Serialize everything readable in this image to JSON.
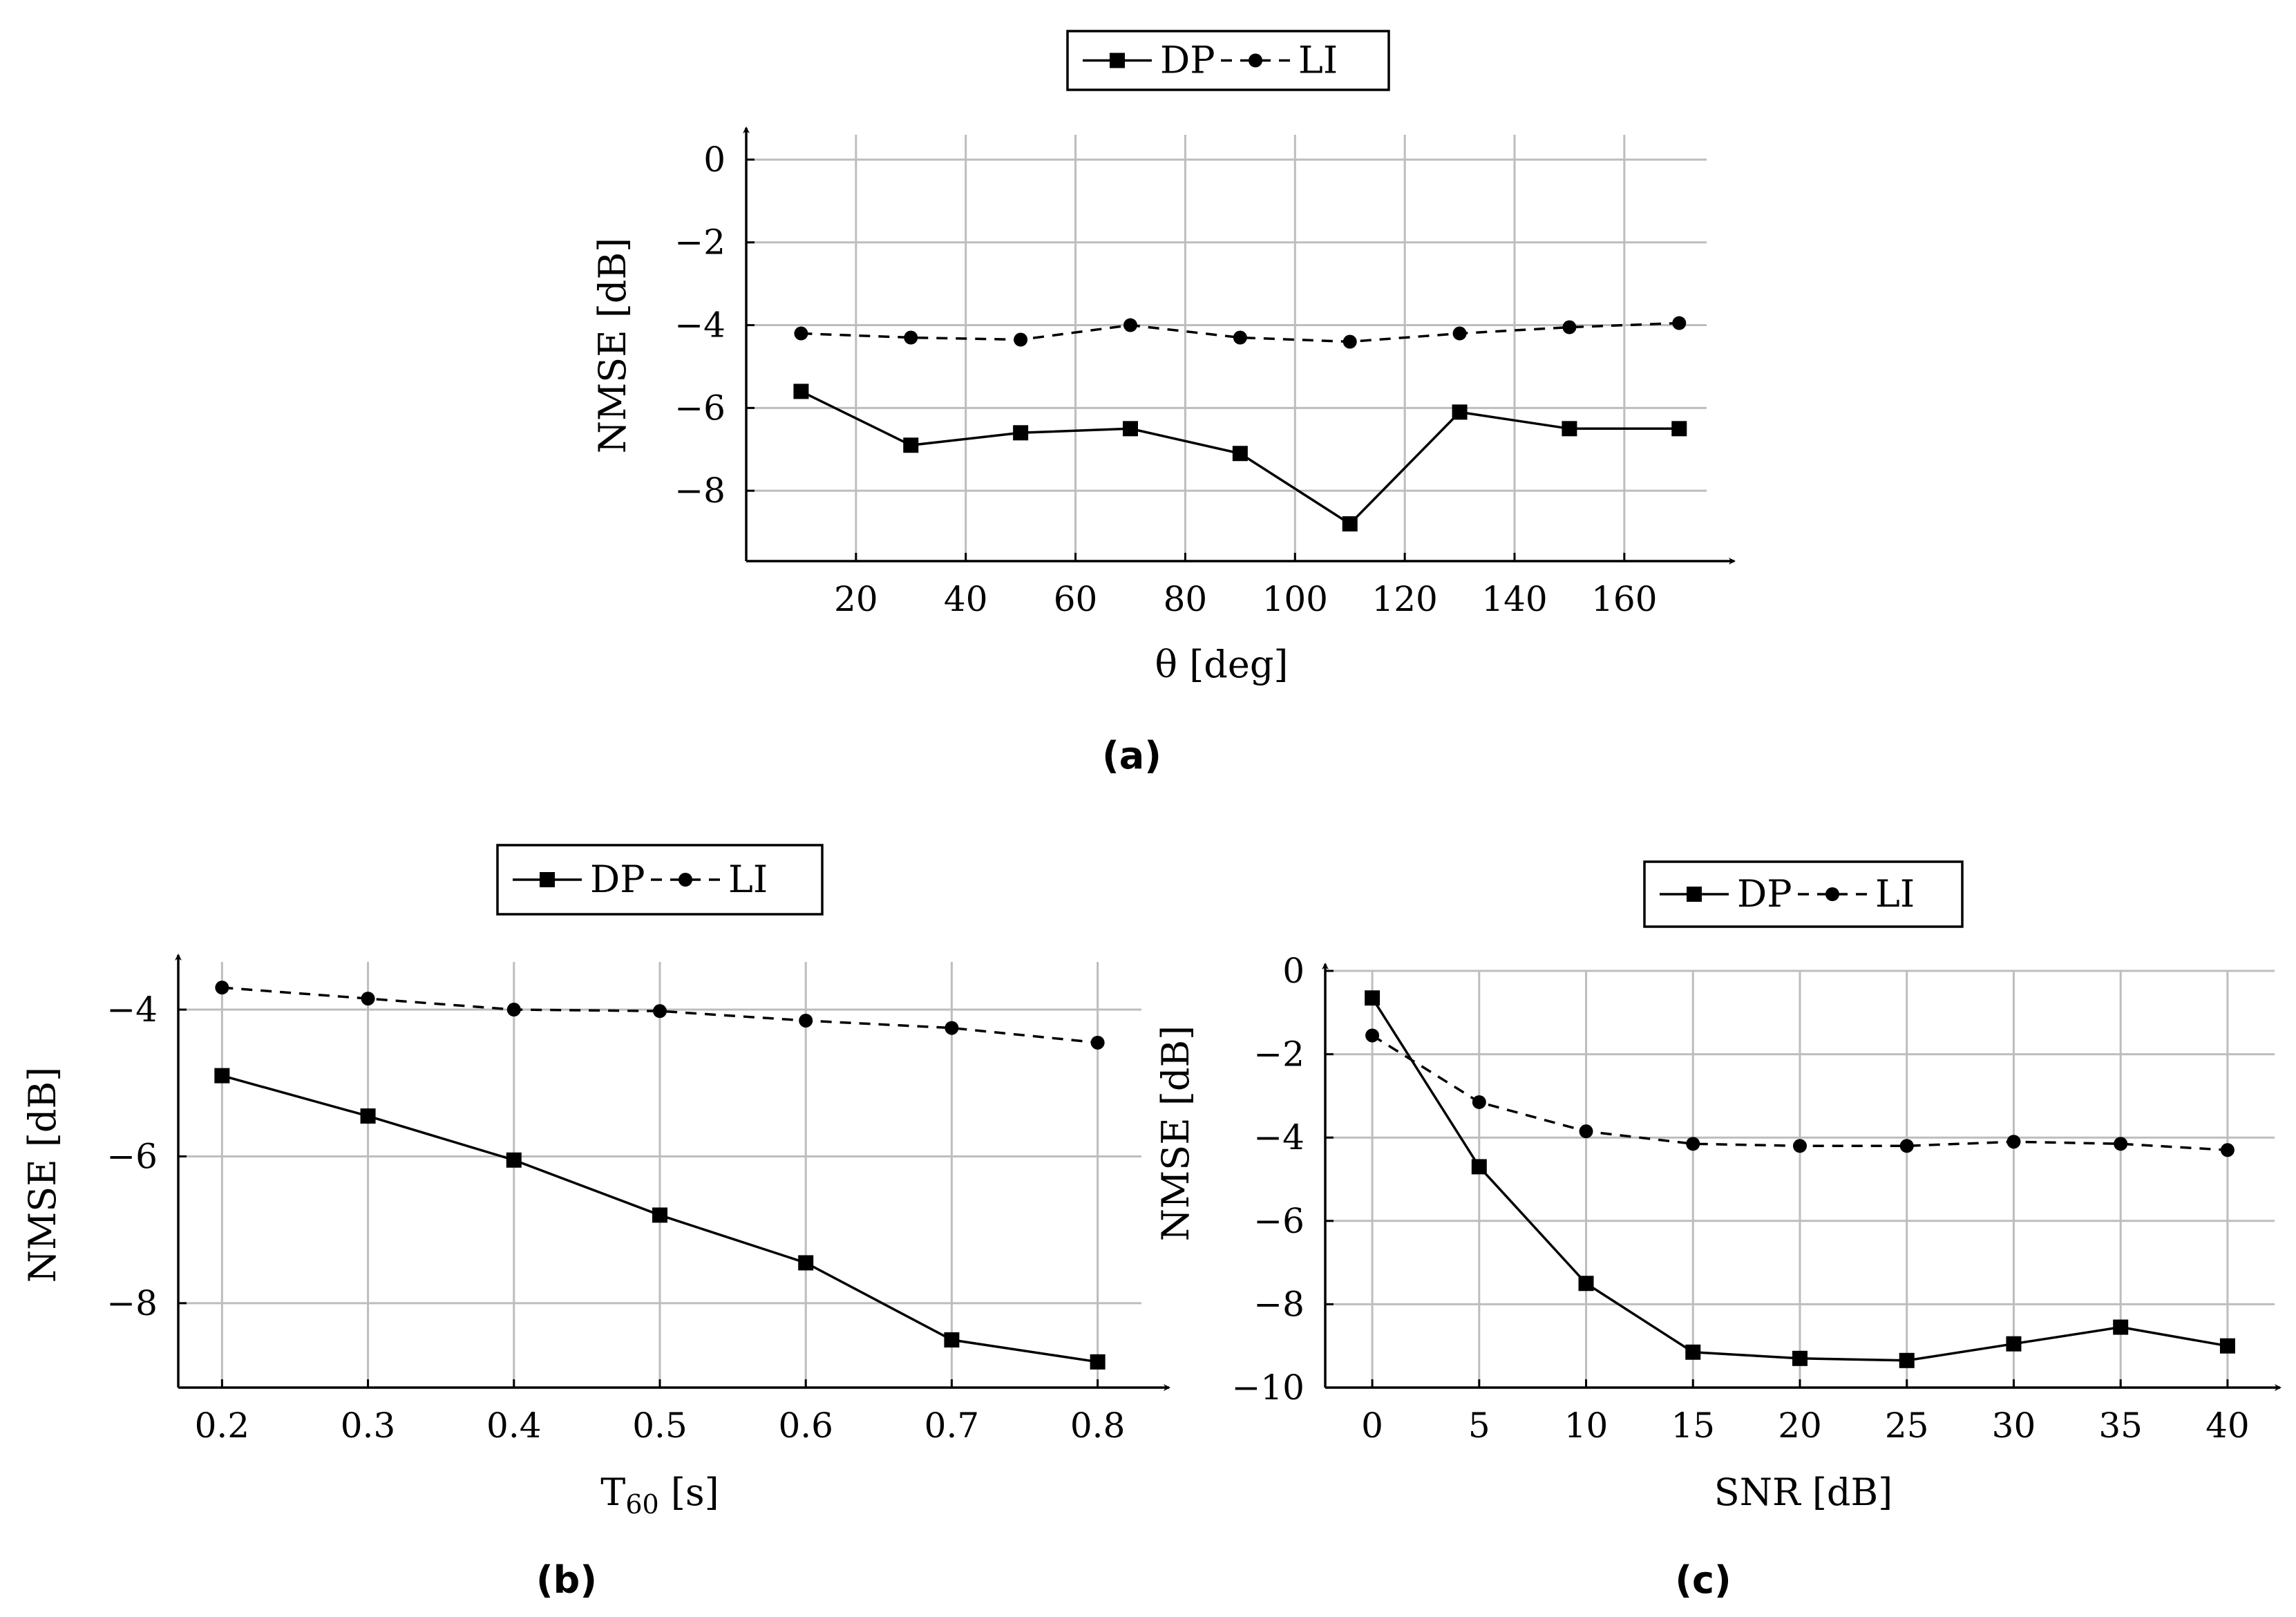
{
  "chart_data": [
    {
      "id": "a",
      "type": "line",
      "caption": "(a)",
      "xlabel": "θ [deg]",
      "ylabel": "NMSE [dB]",
      "xlim": [
        0,
        175
      ],
      "ylim": [
        -9.7,
        0.6
      ],
      "xticks": [
        20,
        40,
        60,
        80,
        100,
        120,
        140,
        160
      ],
      "yticks": [
        0,
        -2,
        -4,
        -6,
        -8
      ],
      "xtick_labels": [
        "20",
        "40",
        "60",
        "80",
        "100",
        "120",
        "140",
        "160"
      ],
      "ytick_labels": [
        "0",
        "−2",
        "−4",
        "−6",
        "−8"
      ],
      "grid": true,
      "legend_position": "top-center",
      "x": [
        10,
        30,
        50,
        70,
        90,
        110,
        130,
        150,
        170
      ],
      "series": [
        {
          "name": "DP",
          "style": "solid",
          "marker": "square",
          "values": [
            -5.6,
            -6.9,
            -6.6,
            -6.5,
            -7.1,
            -8.8,
            -6.1,
            -6.5,
            -6.5
          ]
        },
        {
          "name": "LI",
          "style": "dashed",
          "marker": "circle",
          "values": [
            -4.2,
            -4.3,
            -4.35,
            -4.0,
            -4.3,
            -4.4,
            -4.2,
            -4.05,
            -3.95
          ]
        }
      ]
    },
    {
      "id": "b",
      "type": "line",
      "caption": "(b)",
      "xlabel": "T60 [s]",
      "xlabel_main": "T",
      "xlabel_sub": "60",
      "xlabel_unit": " [s]",
      "ylabel": "NMSE [dB]",
      "xlim": [
        0.17,
        0.83
      ],
      "ylim": [
        -9.15,
        -3.35
      ],
      "xticks": [
        0.2,
        0.3,
        0.4,
        0.5,
        0.6,
        0.7,
        0.8
      ],
      "yticks": [
        -4,
        -6,
        -8
      ],
      "xtick_labels": [
        "0.2",
        "0.3",
        "0.4",
        "0.5",
        "0.6",
        "0.7",
        "0.8"
      ],
      "ytick_labels": [
        "−4",
        "−6",
        "−8"
      ],
      "grid": true,
      "legend_position": "top-center",
      "x": [
        0.2,
        0.3,
        0.4,
        0.5,
        0.6,
        0.7,
        0.8
      ],
      "series": [
        {
          "name": "DP",
          "style": "solid",
          "marker": "square",
          "values": [
            -4.9,
            -5.45,
            -6.05,
            -6.8,
            -7.45,
            -8.5,
            -8.8
          ]
        },
        {
          "name": "LI",
          "style": "dashed",
          "marker": "circle",
          "values": [
            -3.7,
            -3.85,
            -4.0,
            -4.02,
            -4.15,
            -4.25,
            -4.45
          ]
        }
      ]
    },
    {
      "id": "c",
      "type": "line",
      "caption": "(c)",
      "xlabel": "SNR [dB]",
      "ylabel": "NMSE [dB]",
      "xlim": [
        -2.2,
        42.2
      ],
      "ylim": [
        -10,
        0
      ],
      "xticks": [
        0,
        5,
        10,
        15,
        20,
        25,
        30,
        35,
        40
      ],
      "yticks": [
        0,
        -2,
        -4,
        -6,
        -8,
        -10
      ],
      "xtick_labels": [
        "0",
        "5",
        "10",
        "15",
        "20",
        "25",
        "30",
        "35",
        "40"
      ],
      "ytick_labels": [
        "0",
        "−2",
        "−4",
        "−6",
        "−8",
        "−10"
      ],
      "grid": true,
      "legend_position": "top-center",
      "x": [
        0,
        5,
        10,
        15,
        20,
        25,
        30,
        35,
        40
      ],
      "series": [
        {
          "name": "DP",
          "style": "solid",
          "marker": "square",
          "values": [
            -0.65,
            -4.7,
            -7.5,
            -9.15,
            -9.3,
            -9.35,
            -8.95,
            -8.55,
            -9.0
          ]
        },
        {
          "name": "LI",
          "style": "dashed",
          "marker": "circle",
          "values": [
            -1.55,
            -3.15,
            -3.85,
            -4.15,
            -4.2,
            -4.2,
            -4.1,
            -4.15,
            -4.3
          ]
        }
      ]
    }
  ]
}
